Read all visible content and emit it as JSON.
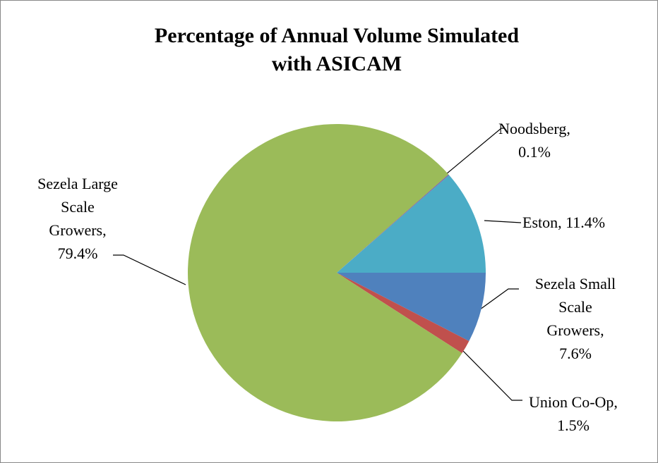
{
  "chart_data": {
    "type": "pie",
    "title": "Percentage of Annual Volume Simulated with ASICAM",
    "categories": [
      "Sezela Small Scale Growers",
      "Union Co-Op",
      "Sezela Large Scale Growers",
      "Noodsberg",
      "Eston"
    ],
    "values": [
      7.6,
      1.5,
      79.4,
      0.1,
      11.4
    ],
    "value_labels": [
      "Sezela Small Scale Growers, 7.6%",
      "Union Co-Op, 1.5%",
      "Sezela Large Scale Growers, 79.4%",
      "Noodsberg, 0.1%",
      "Eston, 11.4%"
    ],
    "colors": [
      "#4f81bd",
      "#c0504d",
      "#9bbb59",
      "#8064a2",
      "#4bacc6"
    ]
  }
}
